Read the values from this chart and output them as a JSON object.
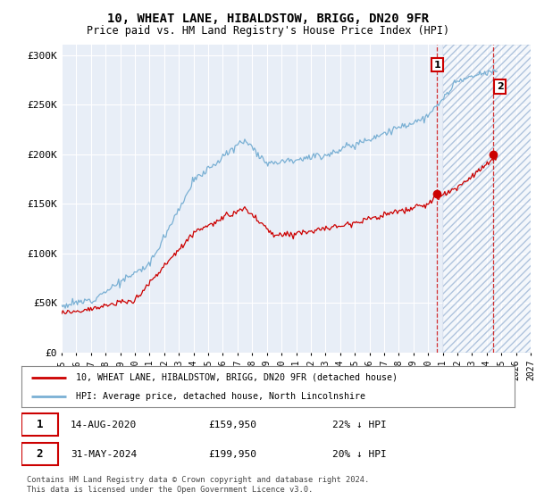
{
  "title": "10, WHEAT LANE, HIBALDSTOW, BRIGG, DN20 9FR",
  "subtitle": "Price paid vs. HM Land Registry's House Price Index (HPI)",
  "ylim": [
    0,
    310000
  ],
  "yticks": [
    0,
    50000,
    100000,
    150000,
    200000,
    250000,
    300000
  ],
  "ytick_labels": [
    "£0",
    "£50K",
    "£100K",
    "£150K",
    "£200K",
    "£250K",
    "£300K"
  ],
  "hpi_color": "#7ab0d4",
  "property_color": "#cc0000",
  "background_color": "#ffffff",
  "plot_bg_color": "#e8eef7",
  "grid_color": "#ffffff",
  "sale1_date_num": 2020.617,
  "sale1_price": 159950,
  "sale1_date_str": "14-AUG-2020",
  "sale1_pct": "22% ↓ HPI",
  "sale2_date_num": 2024.413,
  "sale2_price": 199950,
  "sale2_date_str": "31-MAY-2024",
  "sale2_pct": "20% ↓ HPI",
  "legend_property": "10, WHEAT LANE, HIBALDSTOW, BRIGG, DN20 9FR (detached house)",
  "legend_hpi": "HPI: Average price, detached house, North Lincolnshire",
  "footer": "Contains HM Land Registry data © Crown copyright and database right 2024.\nThis data is licensed under the Open Government Licence v3.0.",
  "xmin": 1995,
  "xmax": 2027,
  "xticks": [
    1995,
    1996,
    1997,
    1998,
    1999,
    2000,
    2001,
    2002,
    2003,
    2004,
    2005,
    2006,
    2007,
    2008,
    2009,
    2010,
    2011,
    2012,
    2013,
    2014,
    2015,
    2016,
    2017,
    2018,
    2019,
    2020,
    2021,
    2022,
    2023,
    2024,
    2025,
    2026,
    2027
  ],
  "shaded_start": 2021.0,
  "shaded_end": 2027.5
}
